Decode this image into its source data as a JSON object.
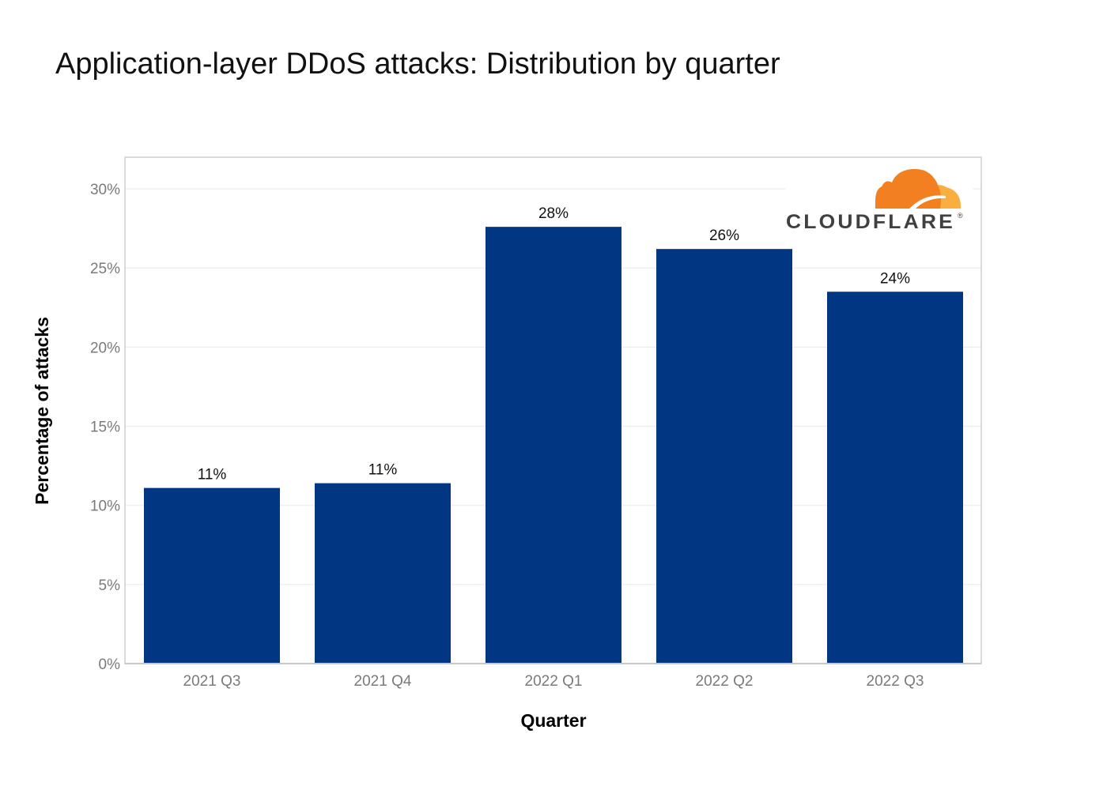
{
  "chart_data": {
    "type": "bar",
    "title": "Application-layer DDoS attacks: Distribution by quarter",
    "xlabel": "Quarter",
    "ylabel": "Percentage of attacks",
    "categories": [
      "2021 Q3",
      "2021 Q4",
      "2022 Q1",
      "2022 Q2",
      "2022 Q3"
    ],
    "values": [
      11.1,
      11.4,
      27.6,
      26.2,
      23.5
    ],
    "data_labels": [
      "11%",
      "11%",
      "28%",
      "26%",
      "24%"
    ],
    "ylim": [
      0,
      32
    ],
    "yticks": [
      0,
      5,
      10,
      15,
      20,
      25,
      30
    ],
    "ytick_labels": [
      "0%",
      "5%",
      "10%",
      "15%",
      "20%",
      "25%",
      "30%"
    ],
    "grid": true,
    "legend": "none",
    "bar_color": "#003682"
  },
  "logo": {
    "text": "CLOUDFLARE",
    "mark": "®",
    "cloud_colors": [
      "#F38020",
      "#FAAE40"
    ],
    "text_color": "#404041",
    "placement": "top-right"
  }
}
